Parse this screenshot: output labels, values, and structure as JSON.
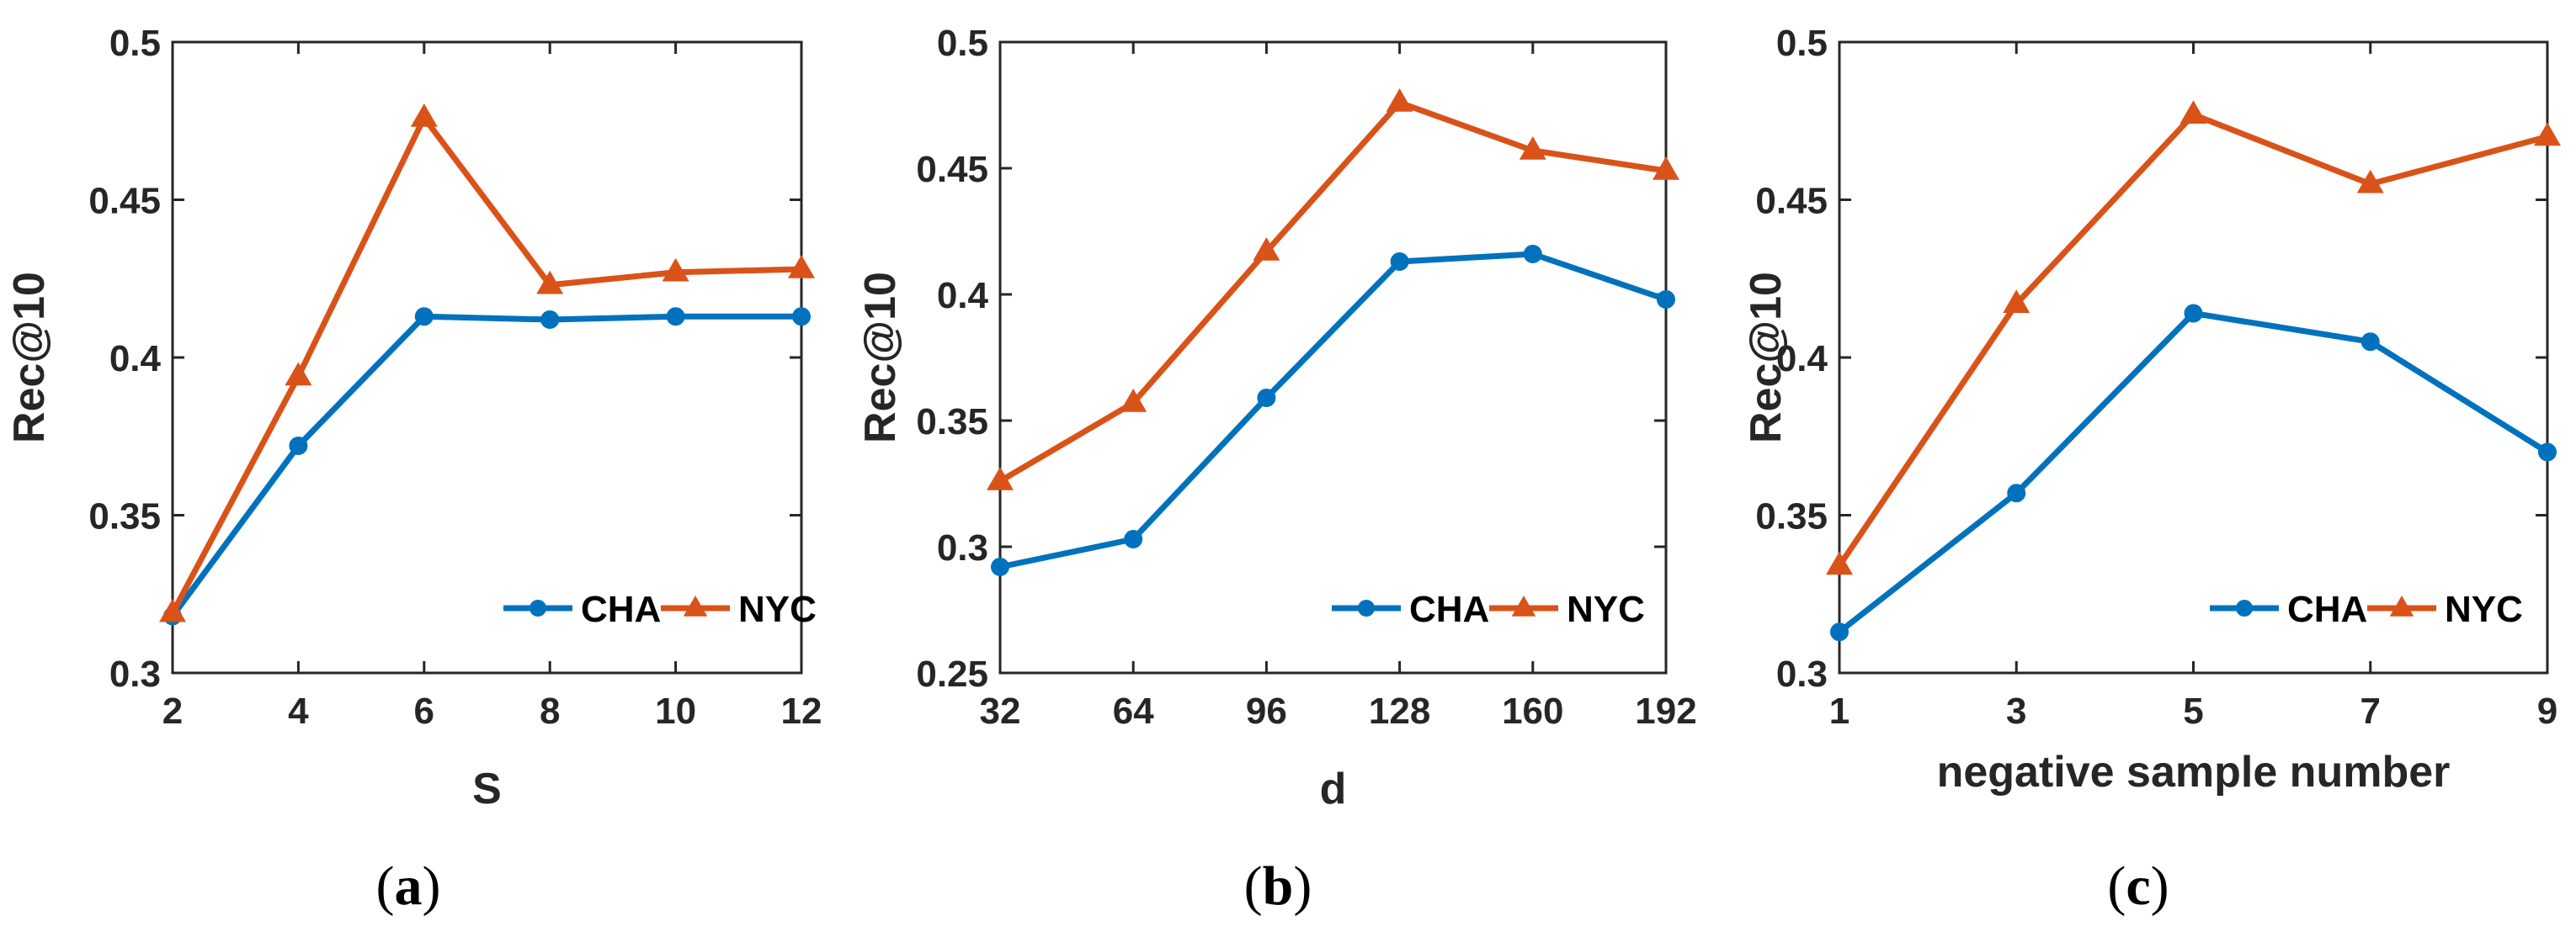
{
  "colors": {
    "cha": "#0072BD",
    "nyc": "#D95319",
    "axis": "#262626"
  },
  "chart_data": [
    {
      "type": "line",
      "panel_label": "a",
      "xlabel": "S",
      "ylabel": "Rec@10",
      "x": [
        2,
        4,
        6,
        8,
        10,
        12
      ],
      "x_tick_labels": [
        "2",
        "4",
        "6",
        "8",
        "10",
        "12"
      ],
      "xlim": [
        2,
        12
      ],
      "ylim": [
        0.3,
        0.5
      ],
      "y_ticks": [
        0.3,
        0.35,
        0.4,
        0.45,
        0.5
      ],
      "y_tick_labels": [
        "0.3",
        "0.35",
        "0.4",
        "0.45",
        "0.5"
      ],
      "grid": false,
      "legend": "bottom-right",
      "series": [
        {
          "name": "CHA",
          "marker": "circle",
          "values": [
            0.318,
            0.372,
            0.413,
            0.412,
            0.413,
            0.413
          ]
        },
        {
          "name": "NYC",
          "marker": "triangle",
          "values": [
            0.319,
            0.394,
            0.476,
            0.423,
            0.427,
            0.428
          ]
        }
      ]
    },
    {
      "type": "line",
      "panel_label": "b",
      "xlabel": "d",
      "ylabel": "Rec@10",
      "x": [
        32,
        64,
        96,
        128,
        160,
        192
      ],
      "x_tick_labels": [
        "32",
        "64",
        "96",
        "128",
        "160",
        "192"
      ],
      "xlim": [
        32,
        192
      ],
      "ylim": [
        0.25,
        0.5
      ],
      "y_ticks": [
        0.25,
        0.3,
        0.35,
        0.4,
        0.45,
        0.5
      ],
      "y_tick_labels": [
        "0.25",
        "0.3",
        "0.35",
        "0.4",
        "0.45",
        "0.5"
      ],
      "grid": false,
      "legend": "bottom-right",
      "series": [
        {
          "name": "CHA",
          "marker": "circle",
          "values": [
            0.292,
            0.303,
            0.359,
            0.413,
            0.416,
            0.398
          ]
        },
        {
          "name": "NYC",
          "marker": "triangle",
          "values": [
            0.326,
            0.357,
            0.417,
            0.476,
            0.457,
            0.449
          ]
        }
      ]
    },
    {
      "type": "line",
      "panel_label": "c",
      "xlabel": "negative sample number",
      "ylabel": "Rec@10",
      "x": [
        1,
        3,
        5,
        7,
        9
      ],
      "x_tick_labels": [
        "1",
        "3",
        "5",
        "7",
        "9"
      ],
      "xlim": [
        1,
        9
      ],
      "ylim": [
        0.3,
        0.5
      ],
      "y_ticks": [
        0.3,
        0.35,
        0.4,
        0.45,
        0.5
      ],
      "y_tick_labels": [
        "0.3",
        "0.35",
        "0.4",
        "0.45",
        "0.5"
      ],
      "grid": false,
      "legend": "bottom-right",
      "series": [
        {
          "name": "CHA",
          "marker": "circle",
          "values": [
            0.313,
            0.357,
            0.414,
            0.405,
            0.37
          ]
        },
        {
          "name": "NYC",
          "marker": "triangle",
          "values": [
            0.334,
            0.417,
            0.477,
            0.455,
            0.47
          ]
        }
      ]
    }
  ]
}
